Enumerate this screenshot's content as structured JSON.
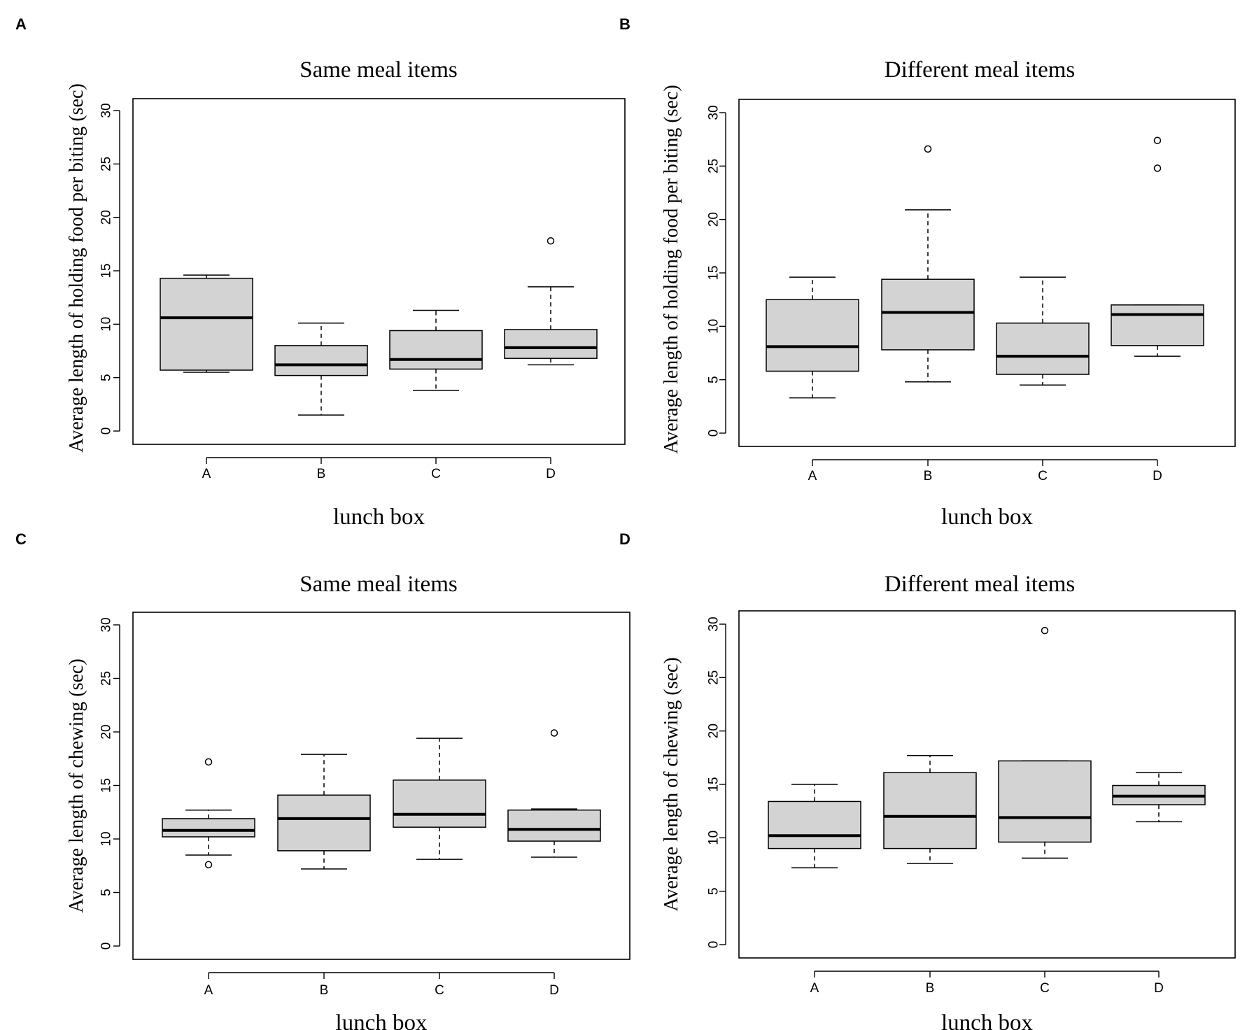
{
  "figure": {
    "panels": [
      {
        "letter": "A",
        "title": "Same meal items",
        "xlabel": "lunch box",
        "ylabel": "Average length of holding food per biting (sec)"
      },
      {
        "letter": "B",
        "title": "Different meal items",
        "xlabel": "lunch box",
        "ylabel": "Average length of holding food per biting (sec)"
      },
      {
        "letter": "C",
        "title": "Same meal items",
        "xlabel": "lunch box",
        "ylabel": "Average length of chewing (sec)"
      },
      {
        "letter": "D",
        "title": "Different meal items",
        "xlabel": "lunch box",
        "ylabel": "Average length of chewing (sec)"
      }
    ]
  },
  "chart_data": [
    {
      "type": "boxplot",
      "panel": "A",
      "title": "Same meal items",
      "xlabel": "lunch box",
      "ylabel": "Average length of holding food per biting (sec)",
      "categories": [
        "A",
        "B",
        "C",
        "D"
      ],
      "ylim": [
        0,
        30
      ],
      "yticks": [
        0,
        5,
        10,
        15,
        20,
        25,
        30
      ],
      "boxes": [
        {
          "category": "A",
          "whisker_low": 5.5,
          "q1": 5.7,
          "median": 10.6,
          "q3": 14.3,
          "whisker_high": 14.6,
          "outliers": []
        },
        {
          "category": "B",
          "whisker_low": 1.5,
          "q1": 5.2,
          "median": 6.2,
          "q3": 8.0,
          "whisker_high": 10.1,
          "outliers": []
        },
        {
          "category": "C",
          "whisker_low": 3.8,
          "q1": 5.8,
          "median": 6.7,
          "q3": 9.4,
          "whisker_high": 11.3,
          "outliers": []
        },
        {
          "category": "D",
          "whisker_low": 6.2,
          "q1": 6.8,
          "median": 7.8,
          "q3": 9.5,
          "whisker_high": 13.5,
          "outliers": [
            17.8
          ]
        }
      ]
    },
    {
      "type": "boxplot",
      "panel": "B",
      "title": "Different meal items",
      "xlabel": "lunch box",
      "ylabel": "Average length of holding food per biting (sec)",
      "categories": [
        "A",
        "B",
        "C",
        "D"
      ],
      "ylim": [
        0,
        30
      ],
      "yticks": [
        0,
        5,
        10,
        15,
        20,
        25,
        30
      ],
      "boxes": [
        {
          "category": "A",
          "whisker_low": 3.3,
          "q1": 5.8,
          "median": 8.1,
          "q3": 12.5,
          "whisker_high": 14.6,
          "outliers": []
        },
        {
          "category": "B",
          "whisker_low": 4.8,
          "q1": 7.8,
          "median": 11.3,
          "q3": 14.4,
          "whisker_high": 20.9,
          "outliers": [
            26.6
          ]
        },
        {
          "category": "C",
          "whisker_low": 4.5,
          "q1": 5.5,
          "median": 7.2,
          "q3": 10.3,
          "whisker_high": 14.6,
          "outliers": []
        },
        {
          "category": "D",
          "whisker_low": 7.2,
          "q1": 8.2,
          "median": 11.1,
          "q3": 12.0,
          "whisker_high": 12.0,
          "outliers": [
            24.8,
            27.4
          ]
        }
      ]
    },
    {
      "type": "boxplot",
      "panel": "C",
      "title": "Same meal items",
      "xlabel": "lunch box",
      "ylabel": "Average length of chewing (sec)",
      "categories": [
        "A",
        "B",
        "C",
        "D"
      ],
      "ylim": [
        0,
        30
      ],
      "yticks": [
        0,
        5,
        10,
        15,
        20,
        25,
        30
      ],
      "boxes": [
        {
          "category": "A",
          "whisker_low": 8.5,
          "q1": 10.2,
          "median": 10.8,
          "q3": 11.9,
          "whisker_high": 12.7,
          "outliers": [
            7.6,
            17.2
          ]
        },
        {
          "category": "B",
          "whisker_low": 7.2,
          "q1": 8.9,
          "median": 11.9,
          "q3": 14.1,
          "whisker_high": 17.9,
          "outliers": []
        },
        {
          "category": "C",
          "whisker_low": 8.1,
          "q1": 11.1,
          "median": 12.3,
          "q3": 15.5,
          "whisker_high": 19.4,
          "outliers": []
        },
        {
          "category": "D",
          "whisker_low": 8.3,
          "q1": 9.8,
          "median": 10.9,
          "q3": 12.7,
          "whisker_high": 12.8,
          "outliers": [
            19.9
          ]
        }
      ]
    },
    {
      "type": "boxplot",
      "panel": "D",
      "title": "Different meal items",
      "xlabel": "lunch box",
      "ylabel": "Average length of chewing (sec)",
      "categories": [
        "A",
        "B",
        "C",
        "D"
      ],
      "ylim": [
        0,
        30
      ],
      "yticks": [
        0,
        5,
        10,
        15,
        20,
        25,
        30
      ],
      "boxes": [
        {
          "category": "A",
          "whisker_low": 7.2,
          "q1": 9.0,
          "median": 10.2,
          "q3": 13.4,
          "whisker_high": 15.0,
          "outliers": []
        },
        {
          "category": "B",
          "whisker_low": 7.6,
          "q1": 9.0,
          "median": 12.0,
          "q3": 16.1,
          "whisker_high": 17.7,
          "outliers": []
        },
        {
          "category": "C",
          "whisker_low": 8.1,
          "q1": 9.6,
          "median": 11.9,
          "q3": 17.2,
          "whisker_high": 17.2,
          "outliers": [
            29.4
          ]
        },
        {
          "category": "D",
          "whisker_low": 11.5,
          "q1": 13.1,
          "median": 13.9,
          "q3": 14.9,
          "whisker_high": 16.1,
          "outliers": []
        }
      ]
    }
  ]
}
